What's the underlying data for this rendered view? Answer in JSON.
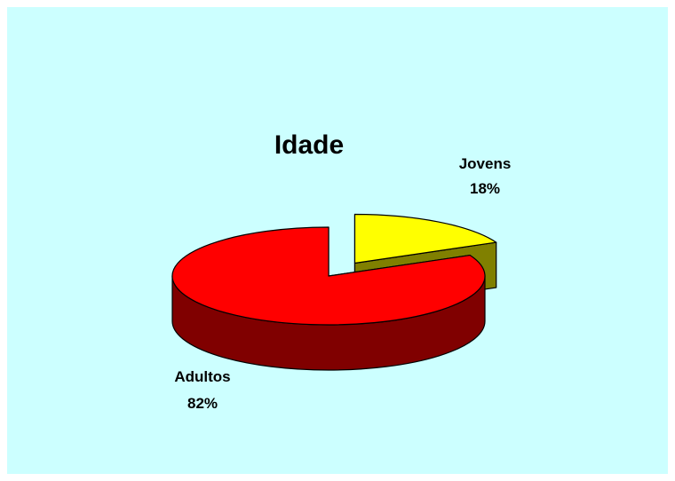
{
  "chart_data": {
    "type": "pie",
    "title": "Idade",
    "slices": [
      {
        "label": "Adultos",
        "percent_label": "82%",
        "value": 82,
        "top_color": "#ff0000",
        "side_color": "#800000"
      },
      {
        "label": "Jovens",
        "percent_label": "18%",
        "value": 18,
        "top_color": "#ffff00",
        "side_color": "#808000"
      }
    ],
    "exploded": "Jovens",
    "legend": "none",
    "background_color": "#ccffff"
  }
}
